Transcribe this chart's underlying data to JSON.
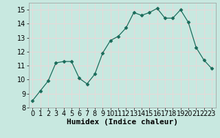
{
  "x": [
    0,
    1,
    2,
    3,
    4,
    5,
    6,
    7,
    8,
    9,
    10,
    11,
    12,
    13,
    14,
    15,
    16,
    17,
    18,
    19,
    20,
    21,
    22,
    23
  ],
  "y": [
    8.5,
    9.2,
    9.9,
    11.2,
    11.3,
    11.3,
    10.1,
    9.7,
    10.4,
    11.9,
    12.8,
    13.1,
    13.7,
    14.8,
    14.6,
    14.8,
    15.1,
    14.4,
    14.4,
    15.0,
    14.1,
    12.3,
    11.4,
    10.8
  ],
  "line_color": "#1a6b5a",
  "marker": "D",
  "marker_size": 2.5,
  "bg_color": "#c8e8e0",
  "grid_color": "#e8d8d8",
  "xlabel": "Humidex (Indice chaleur)",
  "xlabel_fontsize": 8,
  "tick_fontsize": 7,
  "xlim": [
    -0.5,
    23.5
  ],
  "ylim": [
    8,
    15.5
  ],
  "yticks": [
    8,
    9,
    10,
    11,
    12,
    13,
    14,
    15
  ],
  "xticks": [
    0,
    1,
    2,
    3,
    4,
    5,
    6,
    7,
    8,
    9,
    10,
    11,
    12,
    13,
    14,
    15,
    16,
    17,
    18,
    19,
    20,
    21,
    22,
    23
  ]
}
